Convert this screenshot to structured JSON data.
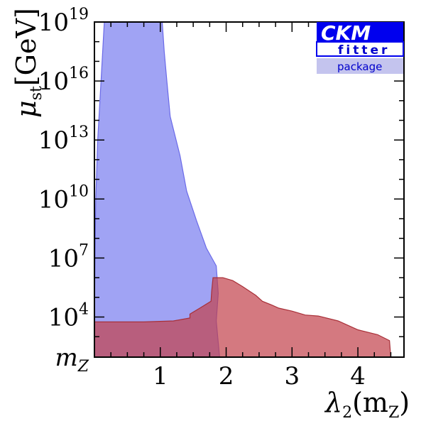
{
  "chart_data": {
    "type": "area",
    "xlabel": {
      "main": "λ",
      "sub": "2",
      "arg_open": "(m",
      "arg_sub": "Z",
      "arg_close": ")"
    },
    "ylabel": {
      "main": "μ",
      "sub": "st",
      "unit": "[GeV]"
    },
    "xlim": [
      0.0,
      4.7
    ],
    "ylim_log10": [
      1.96,
      19
    ],
    "x_ticks": [
      {
        "value": 1,
        "label": "1"
      },
      {
        "value": 2,
        "label": "2"
      },
      {
        "value": 3,
        "label": "3"
      },
      {
        "value": 4,
        "label": "4"
      }
    ],
    "y_ticks": [
      {
        "log10": 1.96,
        "label": "m",
        "sub": "Z"
      },
      {
        "log10": 4,
        "label": "10",
        "sup": "4"
      },
      {
        "log10": 7,
        "label": "10",
        "sup": "7"
      },
      {
        "log10": 10,
        "label": "10",
        "sup": "10"
      },
      {
        "log10": 13,
        "label": "10",
        "sup": "13"
      },
      {
        "log10": 16,
        "label": "10",
        "sup": "16"
      },
      {
        "log10": 19,
        "label": "10",
        "sup": "19"
      }
    ],
    "regions": [
      {
        "color": "#7b7ff0",
        "stroke": "#6a6ae8",
        "opacity": 0.72,
        "boundary": [
          [
            0.0,
            1.96
          ],
          [
            1.2,
            1.96
          ],
          [
            1.9,
            1.96
          ],
          [
            1.85,
            3.8
          ],
          [
            1.88,
            5.2
          ],
          [
            1.85,
            6.6
          ],
          [
            1.7,
            7.5
          ],
          [
            1.55,
            8.9
          ],
          [
            1.4,
            10.4
          ],
          [
            1.3,
            12.2
          ],
          [
            1.15,
            14.2
          ],
          [
            1.1,
            16.0
          ],
          [
            1.06,
            17.5
          ],
          [
            1.03,
            19.0
          ],
          [
            0.15,
            19.0
          ],
          [
            0.1,
            16.0
          ],
          [
            0.05,
            13.0
          ],
          [
            0.02,
            10.0
          ],
          [
            0.01,
            7.0
          ],
          [
            0.0,
            4.0
          ]
        ]
      },
      {
        "color": "#c2404a",
        "stroke": "#a83038",
        "opacity": 0.7,
        "boundary": [
          [
            0.0,
            1.96
          ],
          [
            2.2,
            1.96
          ],
          [
            4.5,
            1.96
          ],
          [
            4.48,
            2.8
          ],
          [
            4.3,
            3.1
          ],
          [
            4.0,
            3.35
          ],
          [
            3.7,
            3.8
          ],
          [
            3.4,
            4.05
          ],
          [
            3.2,
            4.1
          ],
          [
            3.0,
            4.3
          ],
          [
            2.8,
            4.45
          ],
          [
            2.7,
            4.6
          ],
          [
            2.55,
            4.8
          ],
          [
            2.45,
            5.1
          ],
          [
            2.25,
            5.55
          ],
          [
            2.1,
            5.85
          ],
          [
            1.95,
            6.0
          ],
          [
            1.8,
            6.0
          ],
          [
            1.78,
            5.3
          ],
          [
            1.77,
            4.8
          ],
          [
            1.6,
            4.45
          ],
          [
            1.45,
            4.15
          ],
          [
            1.45,
            3.95
          ],
          [
            1.2,
            3.8
          ],
          [
            0.75,
            3.75
          ],
          [
            0.4,
            3.75
          ],
          [
            0.0,
            3.75
          ]
        ]
      }
    ]
  },
  "logo": {
    "line1": "CKM",
    "line2": "fitter",
    "line3": "package"
  }
}
